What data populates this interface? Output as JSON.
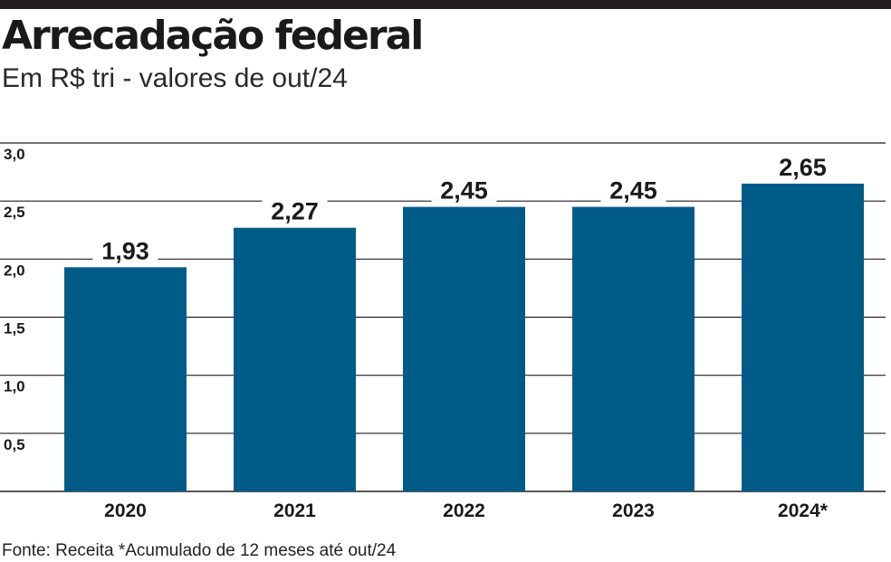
{
  "header": {
    "title": "Arrecadação federal",
    "subtitle": "Em R$ tri - valores de out/24"
  },
  "footer": {
    "note": "Fonte: Receita *Acumulado de 12 meses até out/24"
  },
  "colors": {
    "bar": "#005c87",
    "grid": "#231f20",
    "top_rule": "#231f20"
  },
  "chart_data": {
    "type": "bar",
    "title": "Arrecadação federal",
    "subtitle": "Em R$ tri - valores de out/24",
    "categories": [
      "2020",
      "2021",
      "2022",
      "2023",
      "2024*"
    ],
    "values": [
      1.93,
      2.27,
      2.45,
      2.45,
      2.65
    ],
    "value_labels": [
      "1,93",
      "2,27",
      "2,45",
      "2,45",
      "2,65"
    ],
    "ylim": [
      0,
      3.0
    ],
    "yticks": [
      0.5,
      1.0,
      1.5,
      2.0,
      2.5,
      3.0
    ],
    "ytick_labels": [
      "0,5",
      "1,0",
      "1,5",
      "2,0",
      "2,5",
      "3,0"
    ],
    "grid": true,
    "legend": "none"
  }
}
